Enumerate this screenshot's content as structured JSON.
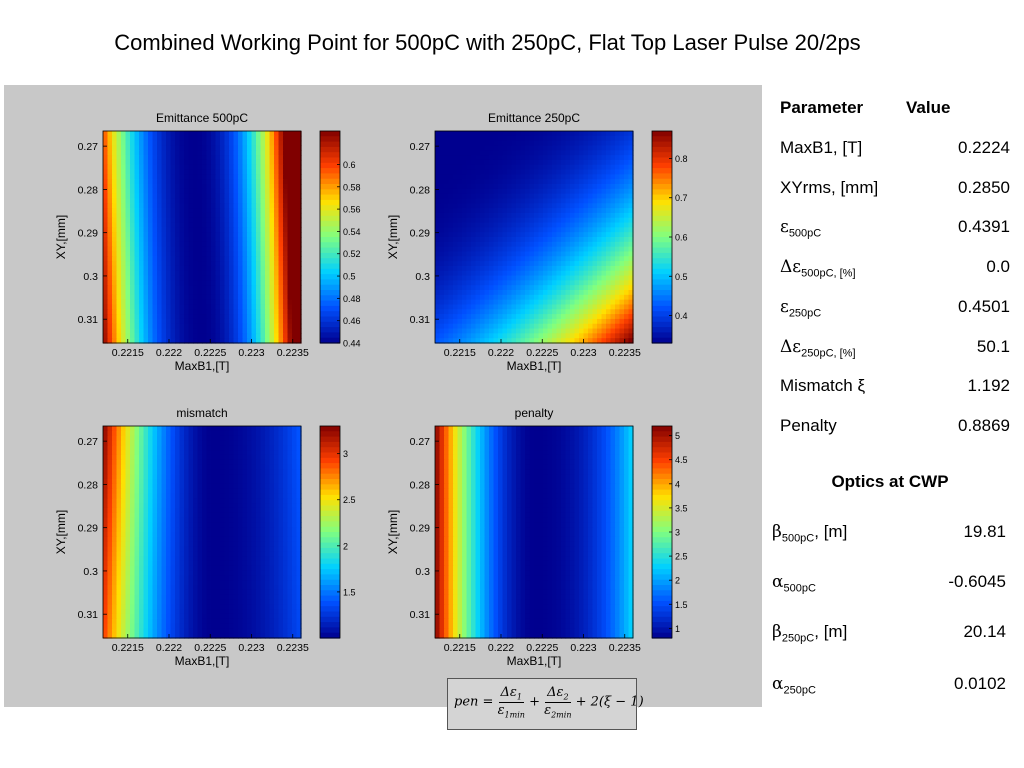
{
  "page": {
    "title": "Combined Working Point for 500pC with 250pC, Flat Top Laser Pulse 20/2ps"
  },
  "params_table": {
    "header_param": "Parameter",
    "header_value": "Value",
    "rows": [
      {
        "label": "MaxB1, [T]",
        "value": "0.2224"
      },
      {
        "label": "XYrms, [mm]",
        "value": "0.2850"
      },
      {
        "sym": "ε",
        "sub": "500pC",
        "value": "0.4391"
      },
      {
        "sym": "Δε",
        "sub": "500pC, [%]",
        "value": "0.0"
      },
      {
        "sym": "ε",
        "sub": "250pC",
        "value": "0.4501"
      },
      {
        "sym": "Δε",
        "sub": "250pC, [%]",
        "value": "50.1"
      },
      {
        "label": "Mismatch ξ",
        "value": "1.192"
      },
      {
        "label": "Penalty",
        "value": "0.8869"
      }
    ]
  },
  "optics_table": {
    "title": "Optics at CWP",
    "rows": [
      {
        "sym": "β",
        "sub": "500pC",
        "suffix": ", [m]",
        "value": "19.81"
      },
      {
        "sym": "α",
        "sub": "500pC",
        "suffix": "",
        "value": "-0.6045"
      },
      {
        "sym": "β",
        "sub": "250pC",
        "suffix": ", [m]",
        "value": "20.14"
      },
      {
        "sym": "α",
        "sub": "250pC",
        "suffix": "",
        "value": "0.0102"
      }
    ]
  },
  "formula": {
    "lhs": "pen",
    "t1_num": "Δε",
    "t1_num_sub": "1",
    "t1_den": "ε",
    "t1_den_sub": "1min",
    "t2_num": "Δε",
    "t2_num_sub": "2",
    "t2_den": "ε",
    "t2_den_sub": "2min",
    "tail": "+ 2(ξ − 1)"
  },
  "chart_data": [
    {
      "type": "heatmap",
      "title": "Emittance 500pC",
      "xlabel": "MaxB1,[T]",
      "ylabel": "XY,[mm]",
      "xlim": [
        0.2212,
        0.2236
      ],
      "ylim": [
        0.2665,
        0.3155
      ],
      "y_reversed": true,
      "xticks": [
        "0.2215",
        "0.222",
        "0.2225",
        "0.223",
        "0.2235"
      ],
      "yticks": [
        "0.27",
        "0.28",
        "0.29",
        "0.3",
        "0.31"
      ],
      "colorbar": {
        "min": 0.44,
        "max": 0.63,
        "ticks": [
          "0.44",
          "0.46",
          "0.48",
          "0.5",
          "0.52",
          "0.54",
          "0.56",
          "0.58",
          "0.6"
        ]
      },
      "colors": [
        "#00008f",
        "#0050ff",
        "#00d0ff",
        "#80ff80",
        "#ffe000",
        "#ff4000",
        "#800000"
      ],
      "approx_minimum": {
        "x": 0.2224,
        "y": 0.285,
        "value": 0.44
      }
    },
    {
      "type": "heatmap",
      "title": "Emittance 250pC",
      "xlabel": "MaxB1,[T]",
      "ylabel": "XY,[mm]",
      "xlim": [
        0.2212,
        0.2236
      ],
      "ylim": [
        0.2665,
        0.3155
      ],
      "y_reversed": true,
      "xticks": [
        "0.2215",
        "0.222",
        "0.2225",
        "0.223",
        "0.2235"
      ],
      "yticks": [
        "0.27",
        "0.28",
        "0.29",
        "0.3",
        "0.31"
      ],
      "colorbar": {
        "min": 0.33,
        "max": 0.87,
        "ticks": [
          "0.4",
          "0.5",
          "0.6",
          "0.7",
          "0.8"
        ]
      },
      "colors": [
        "#00008f",
        "#0050ff",
        "#00d0ff",
        "#80ff80",
        "#ffe000",
        "#ff4000",
        "#800000"
      ],
      "approx_minimum": {
        "x": 0.2212,
        "y": 0.2665,
        "value": 0.33
      }
    },
    {
      "type": "heatmap",
      "title": "mismatch",
      "xlabel": "MaxB1,[T]",
      "ylabel": "XY,[mm]",
      "xlim": [
        0.2212,
        0.2236
      ],
      "ylim": [
        0.2665,
        0.3155
      ],
      "y_reversed": true,
      "xticks": [
        "0.2215",
        "0.222",
        "0.2225",
        "0.223",
        "0.2235"
      ],
      "yticks": [
        "0.27",
        "0.28",
        "0.29",
        "0.3",
        "0.31"
      ],
      "colorbar": {
        "min": 1.0,
        "max": 3.3,
        "ticks": [
          "1.5",
          "2",
          "2.5",
          "3"
        ]
      },
      "colors": [
        "#00008f",
        "#0050ff",
        "#00d0ff",
        "#80ff80",
        "#ffe000",
        "#ff4000",
        "#800000"
      ],
      "approx_minimum": {
        "x": 0.2226,
        "y": 0.307,
        "value": 1.0
      }
    },
    {
      "type": "heatmap",
      "title": "penalty",
      "xlabel": "MaxB1,[T]",
      "ylabel": "XY,[mm]",
      "xlim": [
        0.2212,
        0.2236
      ],
      "ylim": [
        0.2665,
        0.3155
      ],
      "y_reversed": true,
      "xticks": [
        "0.2215",
        "0.222",
        "0.2225",
        "0.223",
        "0.2235"
      ],
      "yticks": [
        "0.27",
        "0.28",
        "0.29",
        "0.3",
        "0.31"
      ],
      "colorbar": {
        "min": 0.8,
        "max": 5.2,
        "ticks": [
          "1",
          "1.5",
          "2",
          "2.5",
          "3",
          "3.5",
          "4",
          "4.5",
          "5"
        ]
      },
      "colors": [
        "#00008f",
        "#0050ff",
        "#00d0ff",
        "#80ff80",
        "#ffe000",
        "#ff4000",
        "#800000"
      ],
      "approx_minimum": {
        "x": 0.2224,
        "y": 0.285,
        "value": 0.8869
      }
    }
  ]
}
